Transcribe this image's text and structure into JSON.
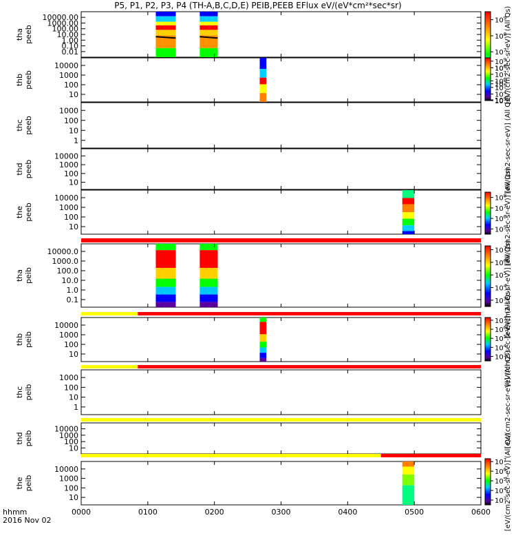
{
  "title": "P5, P1, P2, P3, P4 (TH-A,B,C,D,E) PEIB,PEEB EFlux eV/(eV*cm²*sec*sr)",
  "colorbar_labels": {
    "peeb_a": "[eV/(cm2-sec-sr-eV)] (All Qs)",
    "peeb_b": "[eV/(cm2-sec-sr-eV)] (All Qs)",
    "peeb_e": "[eV/(cm2-sec-sr-eV)] (All Qs)",
    "peib_a": "[eV/(cm2-sec-sr-eV)] (All Qs)",
    "peib_b": "[eV/(cm2-sec-sr-eV)] (All Qs)",
    "peib_cd": "[eV/(cm2-sec-sr-eV)] (All Qs)",
    "peib_e": "[eV/(cm2-sec-sr-eV)] (All Qs)"
  },
  "xaxis": {
    "ticks": [
      "0000",
      "0100",
      "0200",
      "0300",
      "0400",
      "0500",
      "0600"
    ],
    "label_line1": "hhmm",
    "label_line2": "2016 Nov 02"
  },
  "chart_data": {
    "type": "heatmap",
    "x_range_hours": [
      0,
      6
    ],
    "panels": [
      {
        "name": "tha peeb",
        "probe": "tha",
        "product": "peeb",
        "yscale": "log",
        "ylim": [
          0.01,
          20000
        ],
        "yticks": [
          "10000.00",
          "1000.00",
          "100.00",
          "10.00",
          "1.00",
          "0.10",
          "0.01"
        ],
        "colorbar": {
          "ticks_exp": [
            9,
            8,
            7,
            6,
            5,
            4
          ],
          "range_exp": [
            4,
            9.5
          ]
        },
        "data_intervals_hours": [
          [
            1.12,
            1.42
          ],
          [
            1.78,
            2.05
          ]
        ]
      },
      {
        "name": "thb peeb",
        "probe": "thb",
        "product": "peeb",
        "yscale": "log",
        "ylim": [
          8,
          25000
        ],
        "yticks": [
          "10000",
          "1000",
          "100",
          "10"
        ],
        "colorbar": {
          "ticks_exp": [
            9,
            8,
            7,
            6,
            5,
            4,
            3
          ],
          "range_exp": [
            3,
            9.5
          ]
        },
        "data_intervals_hours": [
          [
            2.68,
            2.78
          ]
        ]
      },
      {
        "name": "thc peeb",
        "probe": "thc",
        "product": "peeb",
        "yscale": "log",
        "ylim": [
          1,
          1500
        ],
        "yticks": [
          "1000",
          "100",
          "10",
          "1"
        ],
        "colorbar": null,
        "data_intervals_hours": []
      },
      {
        "name": "thd peeb",
        "probe": "thd",
        "product": "peeb",
        "yscale": "log",
        "ylim": [
          6,
          25000
        ],
        "yticks": [
          "10000",
          "1000",
          "100",
          "10"
        ],
        "colorbar": null,
        "data_intervals_hours": []
      },
      {
        "name": "the peeb",
        "probe": "the",
        "product": "peeb",
        "yscale": "log",
        "ylim": [
          6,
          25000
        ],
        "yticks": [
          "10000",
          "1000",
          "100",
          "10"
        ],
        "colorbar": {
          "ticks_exp": [
            8,
            7,
            6,
            5
          ],
          "range_exp": [
            4.5,
            8.5
          ]
        },
        "data_intervals_hours": [
          [
            4.82,
            5.0
          ]
        ]
      },
      {
        "name": "tha peib",
        "probe": "tha",
        "product": "peib",
        "yscale": "log",
        "ylim": [
          0.1,
          15000
        ],
        "yticks": [
          "10000.0",
          "1000.0",
          "100.0",
          "10.0",
          "1.0",
          "0.1"
        ],
        "colorbar": {
          "ticks_exp": [
            7,
            6,
            5,
            4,
            3
          ],
          "range_exp": [
            2.5,
            7.3
          ]
        },
        "data_intervals_hours": [
          [
            1.12,
            1.42
          ],
          [
            1.78,
            2.05
          ]
        ]
      },
      {
        "name": "thb peib",
        "probe": "thb",
        "product": "peib",
        "yscale": "log",
        "ylim": [
          6,
          25000
        ],
        "yticks": [
          "10000",
          "1000",
          "100",
          "10"
        ],
        "colorbar": {
          "ticks_exp": [
            7,
            6,
            5,
            4,
            3
          ],
          "range_exp": [
            2.5,
            7.3
          ]
        },
        "data_intervals_hours": [
          [
            2.68,
            2.78
          ]
        ]
      },
      {
        "name": "thc peib",
        "probe": "thc",
        "product": "peib",
        "yscale": "log",
        "ylim": [
          0.6,
          2000
        ],
        "yticks": [
          "1000",
          "100",
          "10",
          "1"
        ],
        "colorbar": null,
        "data_intervals_hours": []
      },
      {
        "name": "thd peib",
        "probe": "thd",
        "product": "peib",
        "yscale": "log",
        "ylim": [
          6,
          25000
        ],
        "yticks": [
          "10000",
          "1000",
          "100",
          "10"
        ],
        "colorbar": null,
        "data_intervals_hours": []
      },
      {
        "name": "the peib",
        "probe": "the",
        "product": "peib",
        "yscale": "log",
        "ylim": [
          6,
          25000
        ],
        "yticks": [
          "10000",
          "1000",
          "100",
          "10"
        ],
        "colorbar": {
          "ticks_exp": [
            7,
            6,
            5,
            4,
            3
          ],
          "range_exp": [
            2.5,
            7.3
          ]
        },
        "data_intervals_hours": [
          [
            4.82,
            5.0
          ]
        ]
      }
    ],
    "status_bars": [
      {
        "name": "bar-1",
        "segments": [
          {
            "from": 0,
            "to": 6,
            "color": "#ff0000"
          }
        ]
      },
      {
        "name": "bar-2",
        "segments": [
          {
            "from": 0,
            "to": 0.85,
            "color": "#ffff00"
          },
          {
            "from": 0.85,
            "to": 6,
            "color": "#ff0000"
          }
        ]
      },
      {
        "name": "bar-3",
        "segments": [
          {
            "from": 0,
            "to": 0.85,
            "color": "#ffff00"
          },
          {
            "from": 0.85,
            "to": 6,
            "color": "#ff0000"
          }
        ]
      },
      {
        "name": "bar-4",
        "segments": [
          {
            "from": 0,
            "to": 6,
            "color": "#ffff00"
          }
        ]
      },
      {
        "name": "bar-5",
        "segments": [
          {
            "from": 0,
            "to": 4.5,
            "color": "#ffff00"
          },
          {
            "from": 4.5,
            "to": 6,
            "color": "#ff0000"
          }
        ]
      }
    ]
  }
}
